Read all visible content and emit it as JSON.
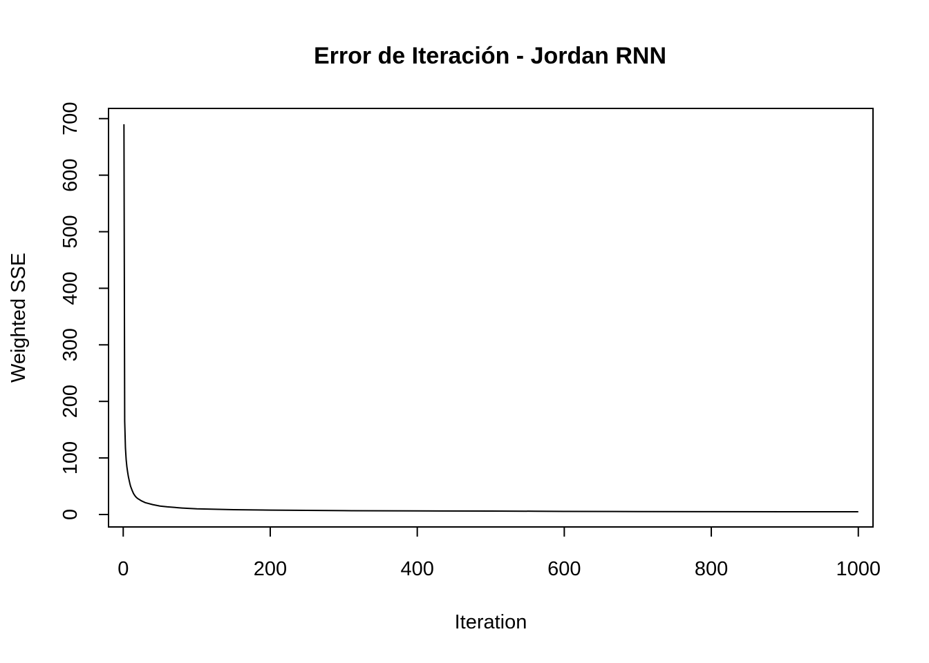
{
  "chart_data": {
    "type": "line",
    "title": "Error de Iteración - Jordan RNN",
    "xlabel": "Iteration",
    "ylabel": "Weighted SSE",
    "xlim": [
      -20,
      1020
    ],
    "ylim": [
      -22,
      718
    ],
    "x_ticks": [
      0,
      200,
      400,
      600,
      800,
      1000
    ],
    "y_ticks": [
      0,
      100,
      200,
      300,
      400,
      500,
      600,
      700
    ],
    "grid": false,
    "line_color": "#000000",
    "series": [
      {
        "x": [
          1,
          2,
          3,
          4,
          5,
          6,
          7,
          8,
          9,
          10,
          12,
          14,
          16,
          18,
          20,
          25,
          30,
          40,
          50,
          60,
          80,
          100,
          150,
          200,
          300,
          400,
          500,
          560,
          600,
          700,
          800,
          900,
          1000
        ],
        "values": [
          690,
          165,
          118,
          97,
          84,
          75,
          67,
          61,
          55,
          50,
          43,
          37,
          33,
          30,
          28,
          24,
          21,
          17.5,
          15,
          13.5,
          11.5,
          10,
          8.6,
          7.8,
          6.8,
          6.4,
          6.1,
          5.8,
          5.4,
          5.2,
          5.0,
          4.9,
          4.8
        ]
      }
    ]
  }
}
